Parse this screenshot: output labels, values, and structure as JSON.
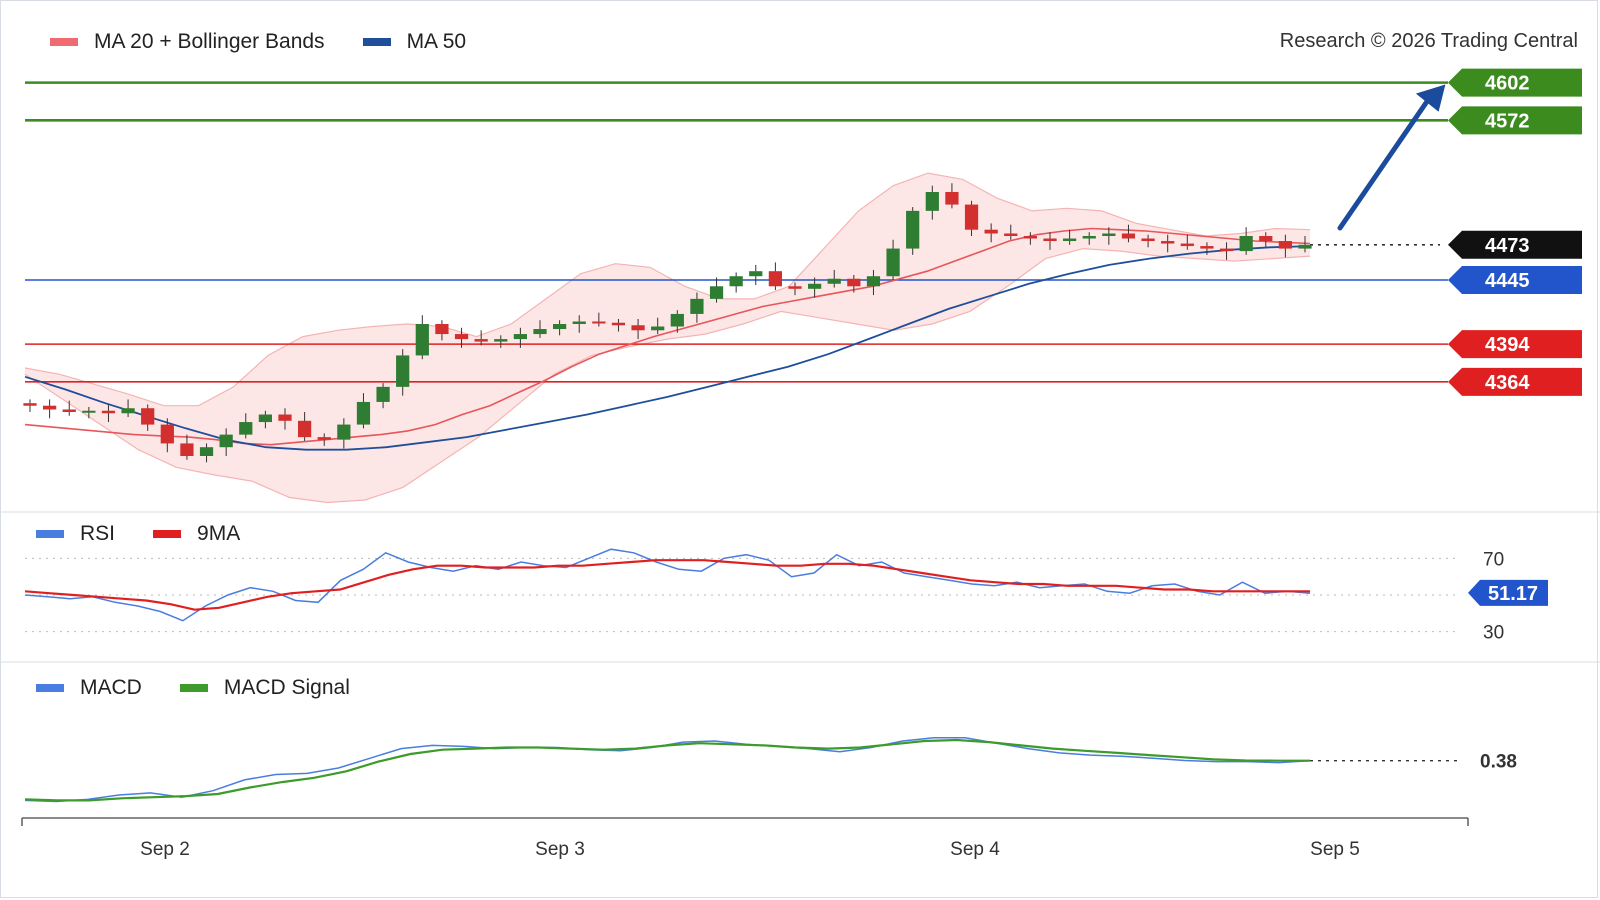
{
  "credit": "Research © 2026 Trading Central",
  "colors": {
    "ma20": "#e8555a",
    "band_fill": "#fde2e2",
    "band_edge": "#f5b4b4",
    "ma50": "#1f4e9b",
    "resistance": "#3c8b1e",
    "support": "#e02020",
    "pivot": "#2255cc",
    "current": "#111111",
    "bull": "#2e7d32",
    "bear": "#d32f2f",
    "rsi": "#4a7de0",
    "rsi_ma": "#e02020",
    "macd": "#4a7de0",
    "macd_signal": "#3c9b2a",
    "arrow": "#1a4b9c"
  },
  "legends": {
    "price": [
      {
        "label": "MA 20 + Bollinger Bands",
        "color": "#f06a72"
      },
      {
        "label": "MA 50",
        "color": "#1f4e9b"
      }
    ],
    "rsi": [
      {
        "label": "RSI",
        "color": "#4a7de0"
      },
      {
        "label": "9MA",
        "color": "#e02020"
      }
    ],
    "macd": [
      {
        "label": "MACD",
        "color": "#4a7de0"
      },
      {
        "label": "MACD Signal",
        "color": "#3c9b2a"
      }
    ]
  },
  "chart_data": [
    {
      "type": "candlestick",
      "title": "",
      "x_ticks": [
        "Sep 2",
        "Sep 3",
        "Sep 4",
        "Sep 5"
      ],
      "ylim": [
        4270,
        4620
      ],
      "levels": [
        {
          "value": 4602,
          "label": "4602",
          "kind": "resistance"
        },
        {
          "value": 4572,
          "label": "4572",
          "kind": "resistance"
        },
        {
          "value": 4473,
          "label": "4473",
          "kind": "current"
        },
        {
          "value": 4445,
          "label": "4445",
          "kind": "pivot"
        },
        {
          "value": 4394,
          "label": "4394",
          "kind": "support"
        },
        {
          "value": 4364,
          "label": "4364",
          "kind": "support"
        }
      ],
      "close_path": [
        4345,
        4342,
        4340,
        4341,
        4339,
        4343,
        4330,
        4315,
        4305,
        4312,
        4322,
        4332,
        4338,
        4333,
        4320,
        4318,
        4330,
        4348,
        4360,
        4385,
        4410,
        4402,
        4398,
        4396,
        4398,
        4402,
        4406,
        4410,
        4412,
        4411,
        4409,
        4405,
        4408,
        4418,
        4430,
        4440,
        4448,
        4452,
        4440,
        4438,
        4442,
        4446,
        4440,
        4448,
        4470,
        4500,
        4515,
        4505,
        4485,
        4482,
        4480,
        4478,
        4476,
        4478,
        4480,
        4482,
        4478,
        4476,
        4474,
        4472,
        4470,
        4468,
        4480,
        4476,
        4470,
        4473
      ],
      "ma20": [
        4330,
        4328,
        4326,
        4324,
        4322,
        4321,
        4320,
        4318,
        4315,
        4314,
        4316,
        4318,
        4320,
        4322,
        4325,
        4330,
        4338,
        4345,
        4355,
        4365,
        4376,
        4386,
        4393,
        4400,
        4406,
        4412,
        4418,
        4424,
        4428,
        4432,
        4436,
        4440,
        4446,
        4452,
        4460,
        4468,
        4476,
        4481,
        4484,
        4486,
        4485,
        4484,
        4482,
        4480,
        4478,
        4476,
        4475,
        4474
      ],
      "ma50": [
        4368,
        4358,
        4347,
        4337,
        4327,
        4318,
        4312,
        4310,
        4310,
        4312,
        4316,
        4320,
        4326,
        4332,
        4338,
        4345,
        4352,
        4360,
        4368,
        4376,
        4386,
        4398,
        4410,
        4422,
        4432,
        4442,
        4450,
        4457,
        4462,
        4466,
        4469,
        4471,
        4472
      ],
      "bb_upper": [
        4375,
        4370,
        4362,
        4354,
        4345,
        4345,
        4360,
        4385,
        4400,
        4405,
        4408,
        4410,
        4408,
        4400,
        4410,
        4430,
        4450,
        4458,
        4455,
        4440,
        4430,
        4430,
        4440,
        4470,
        4500,
        4520,
        4530,
        4525,
        4510,
        4500,
        4502,
        4500,
        4490,
        4485,
        4480,
        4482,
        4486,
        4485
      ],
      "bb_lower": [
        4370,
        4350,
        4330,
        4310,
        4296,
        4290,
        4285,
        4272,
        4268,
        4270,
        4280,
        4300,
        4320,
        4345,
        4370,
        4385,
        4392,
        4398,
        4402,
        4410,
        4420,
        4415,
        4410,
        4405,
        4410,
        4420,
        4440,
        4462,
        4470,
        4468,
        4464,
        4462,
        4460,
        4462,
        4464
      ]
    },
    {
      "type": "line",
      "title": "RSI",
      "ylim": [
        20,
        80
      ],
      "y_ticks": [
        70,
        30
      ],
      "current_value": "51.17",
      "series": [
        {
          "name": "RSI",
          "values": [
            50,
            49,
            48,
            49,
            46,
            44,
            41,
            36,
            44,
            50,
            54,
            52,
            47,
            46,
            58,
            64,
            73,
            68,
            65,
            63,
            66,
            64,
            68,
            66,
            65,
            70,
            75,
            73,
            68,
            64,
            63,
            70,
            72,
            69,
            60,
            62,
            72,
            66,
            68,
            62,
            60,
            58,
            56,
            55,
            57,
            54,
            55,
            56,
            52,
            51,
            55,
            56,
            52,
            50,
            57,
            51,
            52,
            51
          ]
        },
        {
          "name": "9MA",
          "values": [
            52,
            51,
            50,
            49,
            48,
            47,
            45,
            42,
            43,
            46,
            49,
            51,
            52,
            53,
            57,
            61,
            64,
            66,
            66,
            65,
            65,
            65,
            66,
            66,
            67,
            68,
            69,
            69,
            69,
            68,
            67,
            66,
            66,
            67,
            67,
            66,
            64,
            62,
            60,
            58,
            57,
            56,
            56,
            55,
            55,
            55,
            54,
            53,
            53,
            52,
            52,
            52,
            52,
            52
          ]
        }
      ]
    },
    {
      "type": "line",
      "title": "MACD",
      "current_value": "0.38",
      "ylim": [
        -4,
        6
      ],
      "series": [
        {
          "name": "MACD",
          "values": [
            -3.3,
            -3.4,
            -3.2,
            -2.8,
            -2.6,
            -3.0,
            -2.4,
            -1.4,
            -0.9,
            -0.8,
            -0.3,
            0.6,
            1.5,
            1.8,
            1.7,
            1.5,
            1.6,
            1.6,
            1.4,
            1.3,
            1.6,
            2.1,
            2.2,
            1.9,
            1.7,
            1.5,
            1.2,
            1.6,
            2.2,
            2.5,
            2.5,
            2.0,
            1.5,
            1.1,
            0.9,
            0.8,
            0.6,
            0.4,
            0.3,
            0.3,
            0.2,
            0.38
          ]
        },
        {
          "name": "MACD Signal",
          "values": [
            -3.2,
            -3.3,
            -3.3,
            -3.1,
            -3.0,
            -2.9,
            -2.7,
            -2.1,
            -1.6,
            -1.2,
            -0.6,
            0.3,
            1.0,
            1.4,
            1.5,
            1.6,
            1.6,
            1.5,
            1.4,
            1.5,
            1.8,
            2.0,
            1.9,
            1.8,
            1.6,
            1.5,
            1.6,
            1.9,
            2.2,
            2.3,
            2.1,
            1.8,
            1.5,
            1.3,
            1.1,
            0.9,
            0.7,
            0.5,
            0.4,
            0.38,
            0.38
          ]
        }
      ]
    }
  ]
}
